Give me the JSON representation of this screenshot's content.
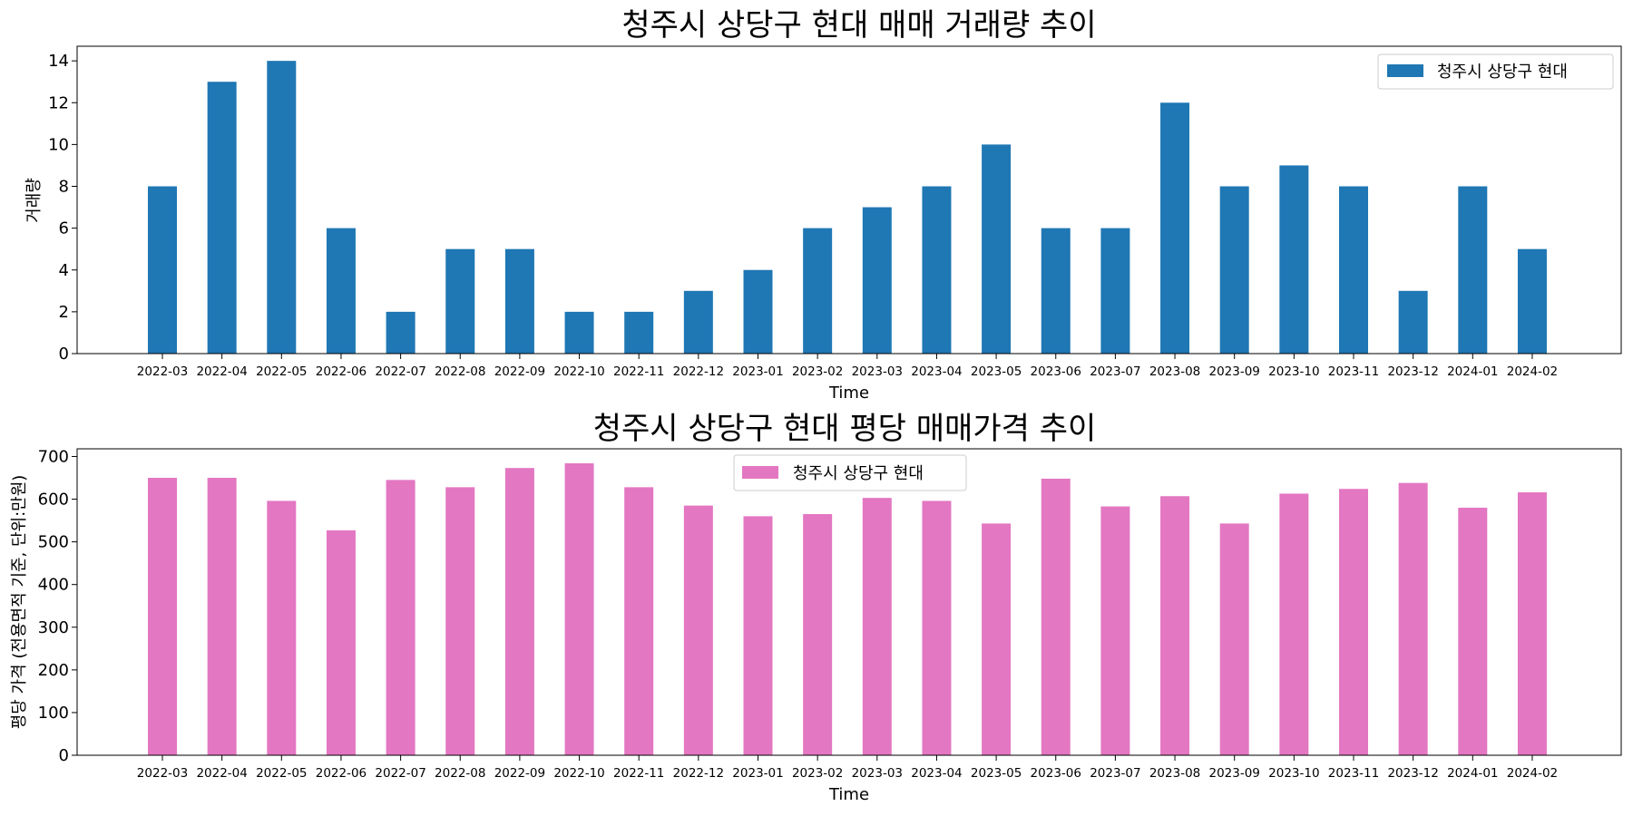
{
  "chart_data": [
    {
      "type": "bar",
      "title": "청주시 상당구 현대 매매 거래량 추이",
      "xlabel": "Time",
      "ylabel": "거래량",
      "categories": [
        "2022-03",
        "2022-04",
        "2022-05",
        "2022-06",
        "2022-07",
        "2022-08",
        "2022-09",
        "2022-10",
        "2022-11",
        "2022-12",
        "2023-01",
        "2023-02",
        "2023-03",
        "2023-04",
        "2023-05",
        "2023-06",
        "2023-07",
        "2023-08",
        "2023-09",
        "2023-10",
        "2023-11",
        "2023-12",
        "2024-01",
        "2024-02"
      ],
      "series": [
        {
          "name": "청주시 상당구 현대",
          "color": "#1f77b4",
          "values": [
            8,
            13,
            14,
            6,
            2,
            5,
            5,
            2,
            2,
            3,
            4,
            6,
            7,
            8,
            10,
            6,
            6,
            12,
            8,
            9,
            8,
            3,
            8,
            5
          ]
        }
      ],
      "ylim": [
        0,
        14.7
      ],
      "yticks": [
        0,
        2,
        4,
        6,
        8,
        10,
        12,
        14
      ],
      "legend": "top-right",
      "grid": false
    },
    {
      "type": "bar",
      "title": "청주시 상당구 현대 평당 매매가격 추이",
      "xlabel": "Time",
      "ylabel": "평당 가격 (전용면적 기준, 단위:만원)",
      "categories": [
        "2022-03",
        "2022-04",
        "2022-05",
        "2022-06",
        "2022-07",
        "2022-08",
        "2022-09",
        "2022-10",
        "2022-11",
        "2022-12",
        "2023-01",
        "2023-02",
        "2023-03",
        "2023-04",
        "2023-05",
        "2023-06",
        "2023-07",
        "2023-08",
        "2023-09",
        "2023-10",
        "2023-11",
        "2023-12",
        "2024-01",
        "2024-02"
      ],
      "series": [
        {
          "name": "청주시 상당구 현대",
          "color": "#e377c2",
          "values": [
            650,
            650,
            596,
            527,
            645,
            628,
            673,
            684,
            628,
            585,
            560,
            565,
            603,
            596,
            543,
            648,
            583,
            607,
            543,
            613,
            624,
            638,
            580,
            616
          ]
        }
      ],
      "ylim": [
        0,
        718
      ],
      "yticks": [
        0,
        100,
        200,
        300,
        400,
        500,
        600,
        700
      ],
      "legend": "top-center",
      "grid": false
    }
  ]
}
